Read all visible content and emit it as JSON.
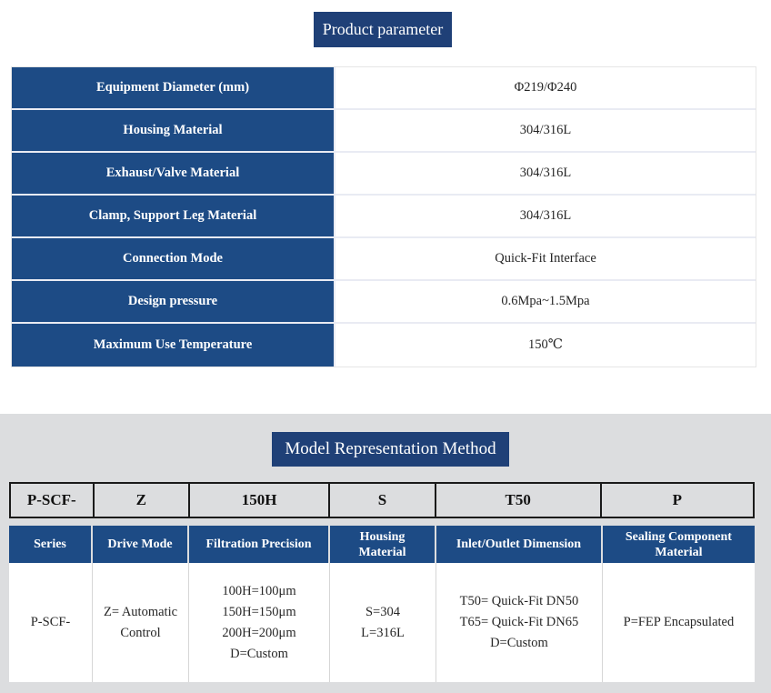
{
  "colors": {
    "table_blue": "#1d4b85",
    "badge_blue": "#1f4077",
    "section_gray": "#dcdddf",
    "code_border_black": "#1a1a1a"
  },
  "section1": {
    "badge": "Product parameter",
    "table": {
      "rows": [
        {
          "label": "Equipment Diameter (mm)",
          "value": "Φ219/Φ240"
        },
        {
          "label": "Housing Material",
          "value": "304/316L"
        },
        {
          "label": "Exhaust/Valve Material",
          "value": "304/316L"
        },
        {
          "label": "Clamp, Support Leg Material",
          "value": "304/316L"
        },
        {
          "label": "Connection Mode",
          "value": "Quick-Fit Interface"
        },
        {
          "label": "Design pressure",
          "value": "0.6Mpa~1.5Mpa"
        },
        {
          "label": "Maximum Use Temperature",
          "value": "150℃"
        }
      ]
    }
  },
  "section2": {
    "badge": "Model Representation Method",
    "model_code": [
      "P-SCF-",
      "Z",
      "150H",
      "S",
      "T50",
      "P"
    ],
    "table": {
      "headers": [
        "Series",
        "Drive Mode",
        "Filtration Precision",
        "Housing Material",
        "Inlet/Outlet Dimension",
        "Sealing Component Material"
      ],
      "row": [
        "P-SCF-",
        "Z= Automatic Control",
        "100H=100μm\n150H=150μm\n200H=200μm\nD=Custom",
        "S=304\nL=316L",
        "T50= Quick-Fit DN50\nT65= Quick-Fit DN65\nD=Custom",
        "P=FEP Encapsulated"
      ]
    }
  }
}
